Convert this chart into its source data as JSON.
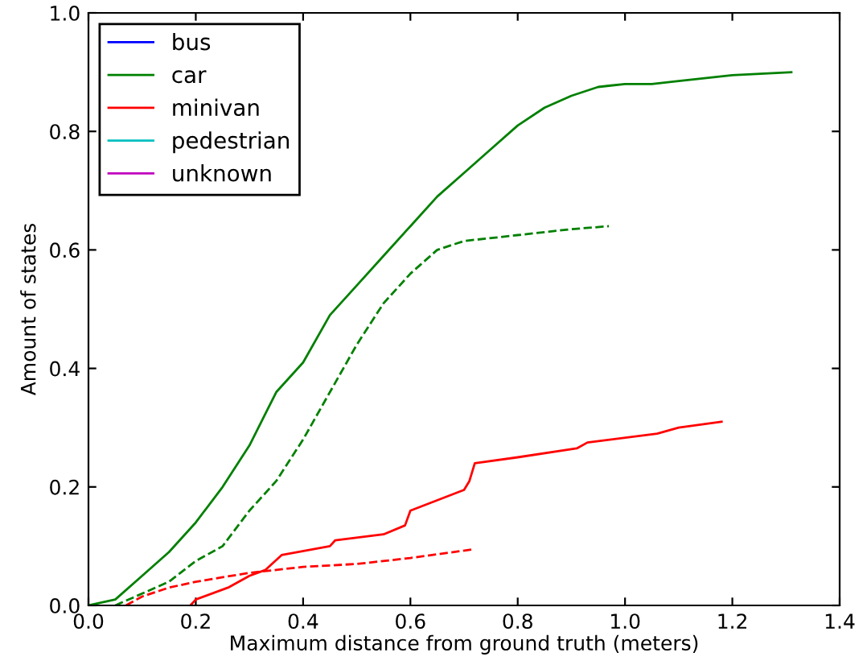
{
  "chart_data": {
    "type": "line",
    "xlabel": "Maximum distance from ground truth (meters)",
    "ylabel": "Amount of states",
    "xlim": [
      0,
      1.4
    ],
    "ylim": [
      0,
      1.0
    ],
    "xticks": [
      "0.0",
      0.2,
      0.4,
      0.6,
      0.8,
      "1.0",
      1.2,
      1.4
    ],
    "yticks": [
      "0.0",
      0.2,
      0.4,
      0.6,
      0.8,
      "1.0"
    ],
    "grid": false,
    "legend": "top left",
    "line_style": "solid",
    "marker": "none",
    "series": [
      {
        "name": "bus",
        "color": "#0000ff"
      },
      {
        "name": "car",
        "color": "#008000",
        "x": [
          0,
          0.05,
          0.1,
          0.15,
          0.2,
          0.25,
          0.3,
          0.35,
          0.4,
          0.45,
          0.5,
          0.55,
          0.6,
          0.65,
          0.7,
          0.75,
          0.8,
          0.85,
          0.9,
          0.95,
          1.0,
          1.05,
          1.1,
          1.2,
          1.31
        ],
        "values": [
          0,
          0.01,
          0.05,
          0.09,
          0.14,
          0.2,
          0.27,
          0.36,
          0.41,
          0.49,
          0.54,
          0.59,
          0.64,
          0.69,
          0.73,
          0.77,
          0.81,
          0.84,
          0.86,
          0.875,
          0.88,
          0.88,
          0.885,
          0.895,
          0.9
        ]
      },
      {
        "name": "minivan",
        "color": "#ff0000",
        "x": [
          0.19,
          0.2,
          0.26,
          0.3,
          0.33,
          0.36,
          0.45,
          0.46,
          0.55,
          0.59,
          0.6,
          0.7,
          0.71,
          0.72,
          0.8,
          0.91,
          0.93,
          1.06,
          1.1,
          1.18
        ],
        "values": [
          0,
          0.01,
          0.03,
          0.05,
          0.06,
          0.085,
          0.1,
          0.11,
          0.12,
          0.135,
          0.16,
          0.195,
          0.21,
          0.24,
          0.25,
          0.265,
          0.275,
          0.29,
          0.3,
          0.31
        ]
      },
      {
        "name": "pedestrian",
        "color": "#00bfbf"
      },
      {
        "name": "unknown",
        "color": "#bf00bf"
      },
      {
        "color": "#008000",
        "line_style": "dashed",
        "x": [
          0.05,
          0.1,
          0.15,
          0.2,
          0.25,
          0.3,
          0.35,
          0.4,
          0.45,
          0.5,
          0.55,
          0.6,
          0.65,
          0.7,
          0.8,
          0.9,
          0.97
        ],
        "values": [
          0,
          0.02,
          0.04,
          0.075,
          0.1,
          0.16,
          0.21,
          0.28,
          0.36,
          0.44,
          0.51,
          0.56,
          0.6,
          0.615,
          0.625,
          0.635,
          0.64
        ]
      },
      {
        "color": "#ff0000",
        "line_style": "dashed",
        "x": [
          0.07,
          0.1,
          0.15,
          0.2,
          0.3,
          0.4,
          0.5,
          0.6,
          0.72
        ],
        "values": [
          0,
          0.015,
          0.03,
          0.04,
          0.055,
          0.065,
          0.07,
          0.08,
          0.095
        ]
      }
    ]
  }
}
